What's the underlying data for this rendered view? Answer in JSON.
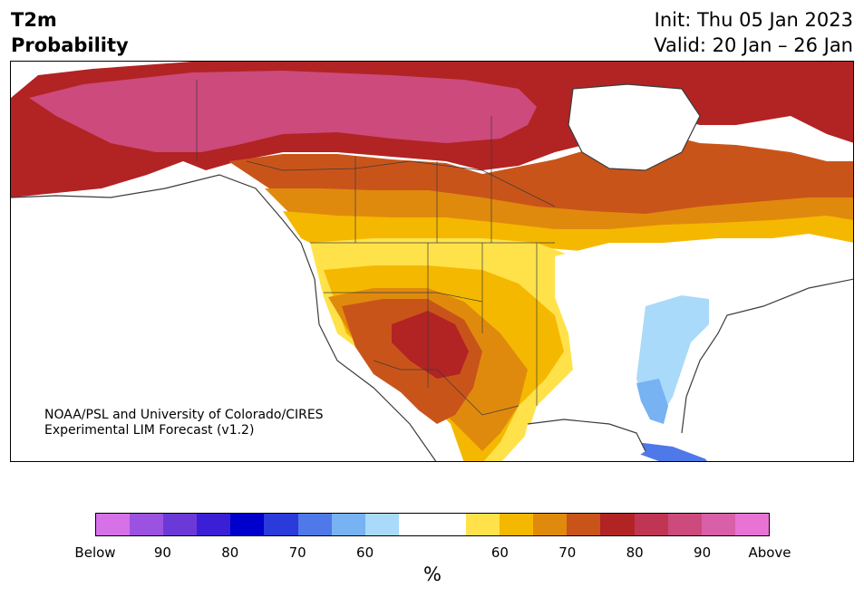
{
  "header": {
    "variable": "T2m",
    "field": "Probability",
    "init": "Init: Thu 05 Jan 2023",
    "valid": "Valid: 20 Jan – 26 Jan"
  },
  "credit": {
    "line1": "NOAA/PSL and University of Colorado/CIRES",
    "line2": "Experimental LIM Forecast (v1.2)"
  },
  "colorbar": {
    "colors": [
      "#d671e8",
      "#9b52e0",
      "#6c39d9",
      "#3a1fd6",
      "#0000cc",
      "#2a3adb",
      "#4f79e8",
      "#77b2f2",
      "#a9daf9",
      "#ffffff",
      "#ffffff",
      "#ffe24a",
      "#f5b800",
      "#e08a0d",
      "#c9541a",
      "#b22323",
      "#c13554",
      "#cc4a7c",
      "#d95fa8",
      "#e873d4"
    ],
    "ticks": [
      "Below",
      "90",
      "80",
      "70",
      "60",
      "60",
      "70",
      "80",
      "90",
      "Above"
    ],
    "unit": "%"
  },
  "map_colors": {
    "land": "#ffffff",
    "ocean": "#ffffff",
    "border": "#3c3c3c"
  }
}
